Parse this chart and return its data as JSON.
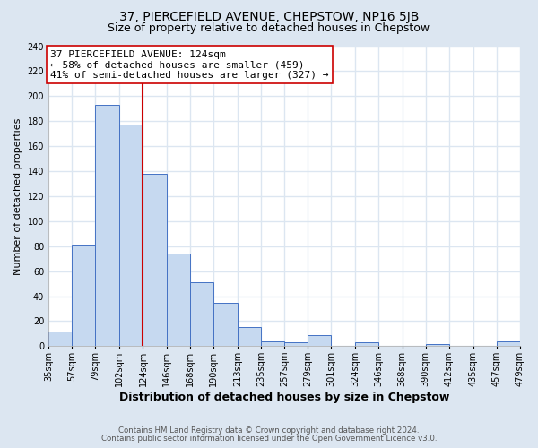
{
  "title": "37, PIERCEFIELD AVENUE, CHEPSTOW, NP16 5JB",
  "subtitle": "Size of property relative to detached houses in Chepstow",
  "xlabel": "Distribution of detached houses by size in Chepstow",
  "ylabel": "Number of detached properties",
  "bar_left_edges": [
    35,
    57,
    79,
    102,
    124,
    146,
    168,
    190,
    213,
    235,
    257,
    279,
    301,
    324,
    346,
    368,
    390,
    412,
    435,
    457
  ],
  "bar_widths": [
    22,
    22,
    23,
    22,
    22,
    22,
    22,
    23,
    22,
    22,
    22,
    22,
    23,
    22,
    22,
    22,
    22,
    23,
    22,
    22
  ],
  "bar_heights": [
    12,
    81,
    193,
    177,
    138,
    74,
    51,
    35,
    15,
    4,
    3,
    9,
    0,
    3,
    0,
    0,
    2,
    0,
    0,
    4
  ],
  "bar_color": "#c6d9f0",
  "bar_edge_color": "#4472c4",
  "xtick_labels": [
    "35sqm",
    "57sqm",
    "79sqm",
    "102sqm",
    "124sqm",
    "146sqm",
    "168sqm",
    "190sqm",
    "213sqm",
    "235sqm",
    "257sqm",
    "279sqm",
    "301sqm",
    "324sqm",
    "346sqm",
    "368sqm",
    "390sqm",
    "412sqm",
    "435sqm",
    "457sqm",
    "479sqm"
  ],
  "ylim": [
    0,
    240
  ],
  "yticks": [
    0,
    20,
    40,
    60,
    80,
    100,
    120,
    140,
    160,
    180,
    200,
    220,
    240
  ],
  "vline_x": 124,
  "vline_color": "#cc0000",
  "annotation_text": "37 PIERCEFIELD AVENUE: 124sqm\n← 58% of detached houses are smaller (459)\n41% of semi-detached houses are larger (327) →",
  "annotation_box_color": "#ffffff",
  "annotation_box_edge": "#cc0000",
  "footnote1": "Contains HM Land Registry data © Crown copyright and database right 2024.",
  "footnote2": "Contains public sector information licensed under the Open Government Licence v3.0.",
  "bg_color": "#dce6f1",
  "plot_bg_color": "#ffffff",
  "grid_color": "#dce6f1",
  "title_fontsize": 10,
  "subtitle_fontsize": 9,
  "xlabel_fontsize": 9,
  "ylabel_fontsize": 8,
  "tick_fontsize": 7,
  "annotation_fontsize": 8
}
